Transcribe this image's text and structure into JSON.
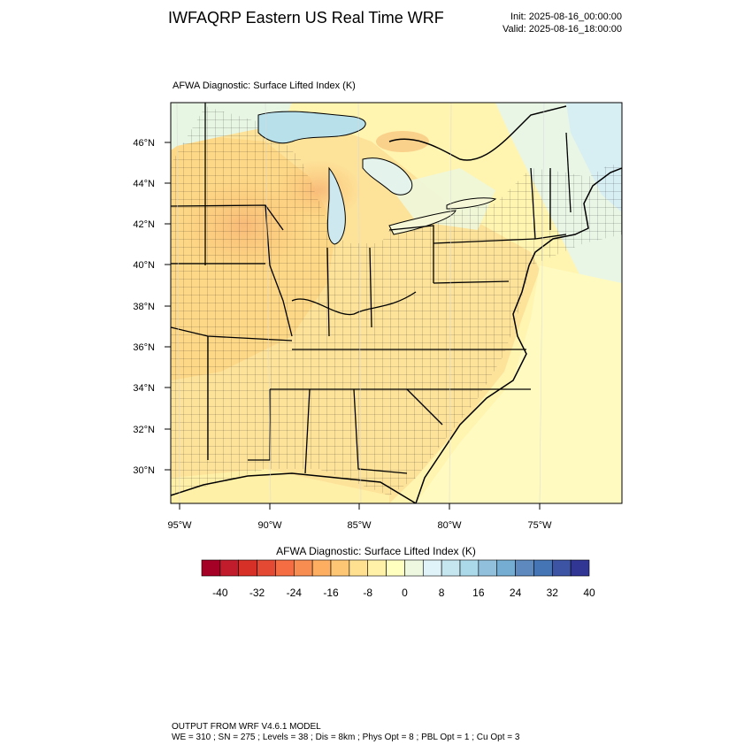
{
  "header": {
    "title": "IWFAQRP Eastern US Real Time WRF",
    "init": "Init: 2025-08-16_00:00:00",
    "valid": "Valid: 2025-08-16_18:00:00"
  },
  "map": {
    "title": "AFWA Diagnostic: Surface Lifted Index   (K)",
    "lat_labels": [
      "46°N",
      "44°N",
      "42°N",
      "40°N",
      "38°N",
      "36°N",
      "34°N",
      "32°N",
      "30°N"
    ],
    "lon_labels": [
      "95°W",
      "90°W",
      "85°W",
      "80°W",
      "75°W"
    ],
    "field": "Surface Lifted Index",
    "units": "K"
  },
  "colorbar": {
    "title": "AFWA Diagnostic: Surface Lifted Index  (K)",
    "labels": [
      "-40",
      "-32",
      "-24",
      "-16",
      "-8",
      "0",
      "8",
      "16",
      "24",
      "32",
      "40"
    ],
    "colors": [
      "#a50026",
      "#c11c2b",
      "#d73027",
      "#e34933",
      "#f46d43",
      "#f88d52",
      "#fdae61",
      "#fdc675",
      "#fee090",
      "#fff1a8",
      "#ffffbf",
      "#eef8e1",
      "#e0f3f8",
      "#c5e5ef",
      "#abd9e9",
      "#91c0dc",
      "#74add1",
      "#5d89be",
      "#4575b4",
      "#3c54a3",
      "#313695"
    ]
  },
  "footer": {
    "line1": "OUTPUT FROM WRF V4.6.1 MODEL",
    "line2": "WE = 310 ; SN = 275 ; Levels = 38 ; Dis = 8km ; Phys Opt = 8 ; PBL Opt = 1 ; Cu Opt = 3"
  }
}
